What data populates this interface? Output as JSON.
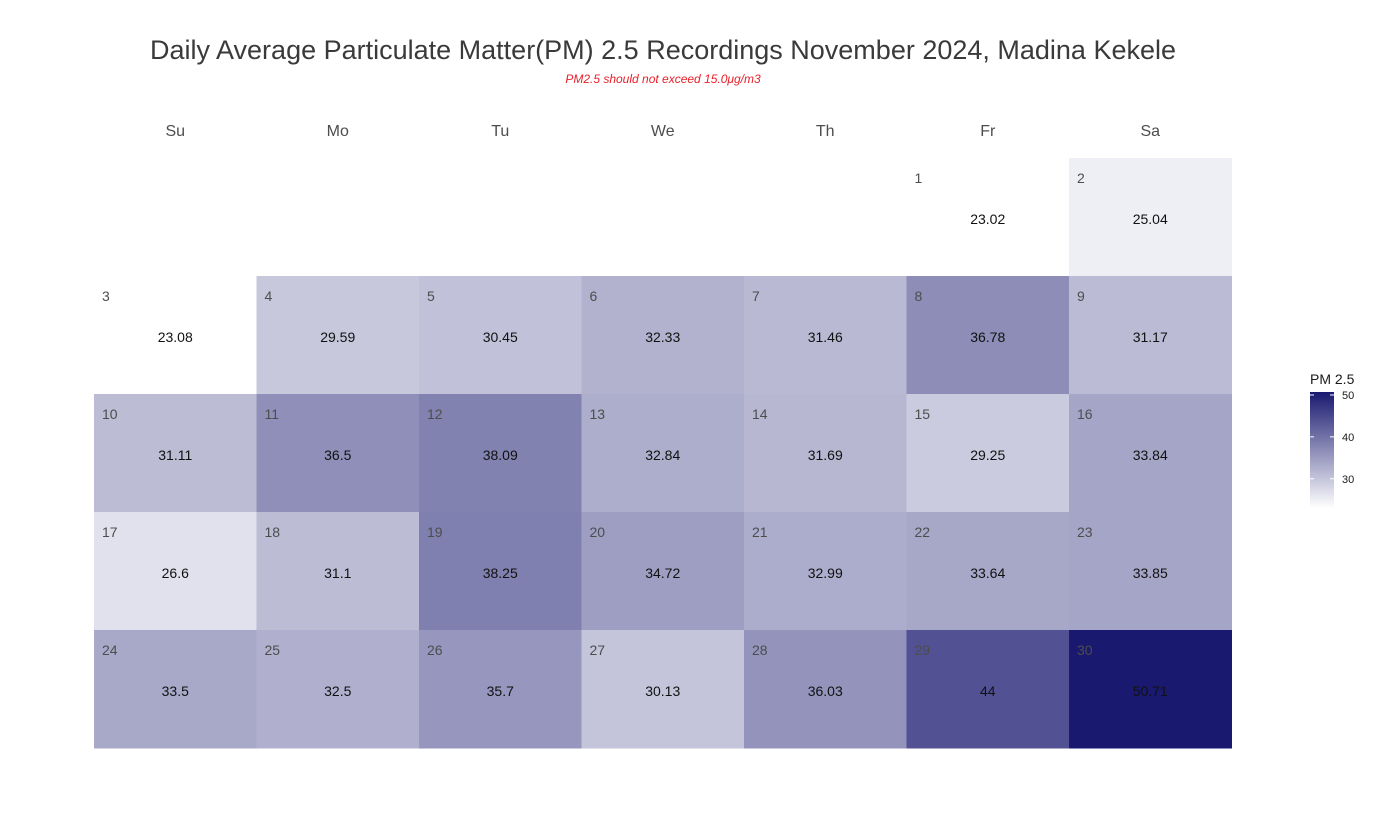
{
  "chart_data": {
    "type": "heatmap",
    "title": "Daily Average Particulate Matter(PM) 2.5 Recordings November 2024,  Madina Kekele",
    "subtitle": "PM2.5 should not exceed 15.0μg/m3",
    "weekdays": [
      "Su",
      "Mo",
      "Tu",
      "We",
      "Th",
      "Fr",
      "Sa"
    ],
    "month": "November 2024",
    "first_weekday_index": 5,
    "days": [
      1,
      2,
      3,
      4,
      5,
      6,
      7,
      8,
      9,
      10,
      11,
      12,
      13,
      14,
      15,
      16,
      17,
      18,
      19,
      20,
      21,
      22,
      23,
      24,
      25,
      26,
      27,
      28,
      29,
      30
    ],
    "values": [
      23.02,
      25.04,
      23.08,
      29.59,
      30.45,
      32.33,
      31.46,
      36.78,
      31.17,
      31.11,
      36.5,
      38.09,
      32.84,
      31.69,
      29.25,
      33.84,
      26.6,
      31.1,
      38.25,
      34.72,
      32.99,
      33.64,
      33.85,
      33.5,
      32.5,
      35.7,
      30.13,
      36.03,
      44,
      50.71
    ],
    "legend": {
      "title": "PM 2.5",
      "ticks": [
        30,
        40,
        50
      ],
      "range": [
        23.02,
        50.71
      ],
      "placement": "right"
    },
    "colors": {
      "low": "#ffffff",
      "high": "#191970"
    }
  }
}
